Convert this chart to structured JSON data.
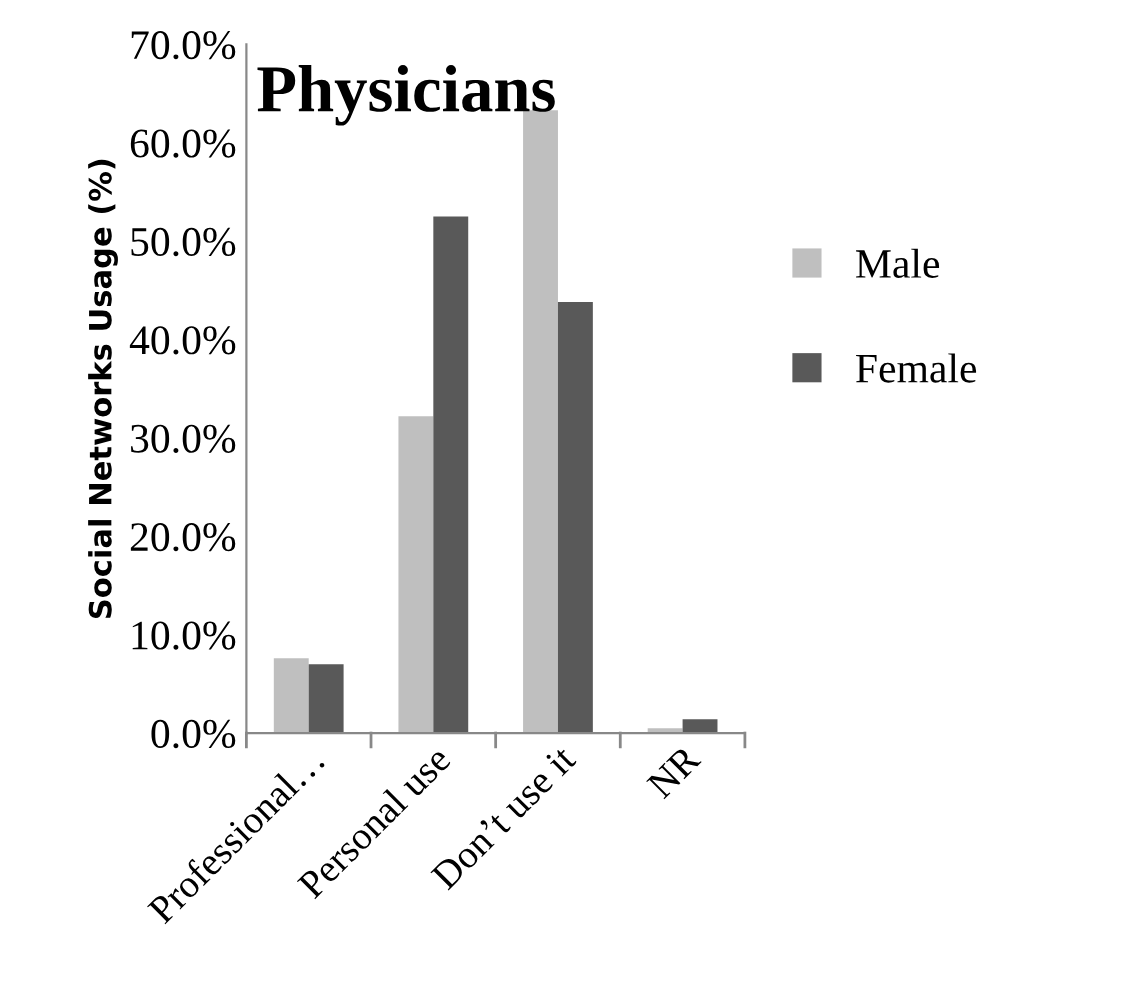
{
  "chart_data": {
    "type": "bar",
    "title": "Physicians",
    "ylabel": "Social Networks Usage (%)",
    "categories": [
      "Professional…",
      "Personal use",
      "Don’t use it",
      "NR"
    ],
    "series": [
      {
        "name": "Male",
        "color": "#bfbfbf",
        "values": [
          7.6,
          32.2,
          63.3,
          0.5
        ]
      },
      {
        "name": "Female",
        "color": "#595959",
        "values": [
          7.0,
          52.5,
          43.8,
          1.4
        ]
      }
    ],
    "ylim": [
      0,
      70
    ],
    "yticks": [
      {
        "value": 0,
        "label": "0.0%"
      },
      {
        "value": 10,
        "label": "10.0%"
      },
      {
        "value": 20,
        "label": "20.0%"
      },
      {
        "value": 30,
        "label": "30.0%"
      },
      {
        "value": 40,
        "label": "40.0%"
      },
      {
        "value": 50,
        "label": "50.0%"
      },
      {
        "value": 60,
        "label": "60.0%"
      },
      {
        "value": 70,
        "label": "70.0%"
      }
    ],
    "grid": false,
    "legend": "right"
  }
}
